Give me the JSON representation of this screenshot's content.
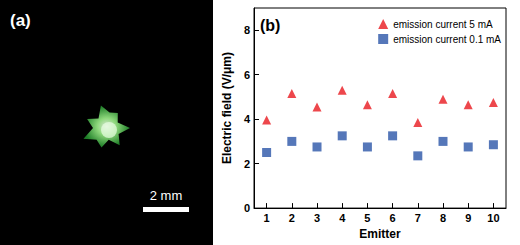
{
  "panel_a": {
    "label": "(a)",
    "scale_bar": "2 mm"
  },
  "chart_data": {
    "type": "scatter",
    "title": "(b)",
    "x_label": "Emitter",
    "y_label": "Electric field (V/μm)",
    "categories": [
      "1",
      "2",
      "3",
      "4",
      "5",
      "6",
      "7",
      "8",
      "9",
      "10"
    ],
    "series": [
      {
        "name": "emission current 5 mA",
        "color": "#e8191f",
        "marker": "triangle",
        "values": [
          3.96,
          5.15,
          4.55,
          5.3,
          4.65,
          5.15,
          3.85,
          4.9,
          4.65,
          4.75
        ]
      },
      {
        "name": "emission current 0.1 mA",
        "color": "#2a55a8",
        "marker": "square",
        "values": [
          2.5,
          3.0,
          2.75,
          3.25,
          2.75,
          3.25,
          2.35,
          3.0,
          2.75,
          2.85
        ]
      }
    ],
    "ylim": [
      0,
      9
    ],
    "yticks": [
      0,
      2,
      4,
      6,
      8
    ],
    "legend": "upper right",
    "grid": false
  }
}
